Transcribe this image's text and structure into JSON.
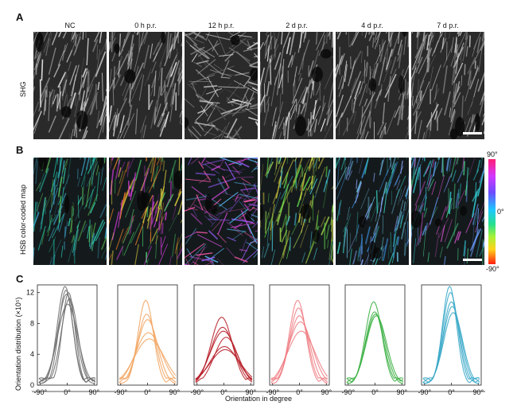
{
  "panels": {
    "a": "A",
    "b": "B",
    "c": "C"
  },
  "columns": [
    "NC",
    "0 h p.r.",
    "12 h p.r.",
    "2 d p.r.",
    "4 d p.r.",
    "7 d p.r."
  ],
  "rows": {
    "shg": "SHG",
    "hsb": "HSB color-coded map"
  },
  "colorbar": {
    "top": "90°",
    "mid": "0°",
    "bottom": "-90°"
  },
  "chart_data": {
    "type": "line",
    "xlabel": "Orientation in degree",
    "ylabel": "Orientation distribution (×10⁵)",
    "xlim": [
      -100,
      100
    ],
    "ylim": [
      0,
      13
    ],
    "xticks": [
      "-90°",
      "0°",
      "90°"
    ],
    "yticks": [
      "0",
      "4",
      "8",
      "12"
    ],
    "panels": [
      {
        "label": "NC",
        "color": "#707070",
        "curves": [
          [
            12.8,
            26
          ],
          [
            12.3,
            24
          ],
          [
            11.8,
            30
          ],
          [
            10.5,
            34
          ],
          [
            12.0,
            22
          ],
          [
            11.2,
            28
          ]
        ]
      },
      {
        "label": "0 h p.r.",
        "color": "#f2a562",
        "curves": [
          [
            11.0,
            26
          ],
          [
            9.2,
            30
          ],
          [
            8.5,
            34
          ],
          [
            6.8,
            44
          ],
          [
            6.0,
            50
          ]
        ]
      },
      {
        "label": "12 h p.r.",
        "color": "#b8202a",
        "curves": [
          [
            8.8,
            36
          ],
          [
            7.5,
            40
          ],
          [
            7.0,
            44
          ],
          [
            5.0,
            48
          ],
          [
            4.6,
            52
          ],
          [
            6.2,
            40
          ]
        ]
      },
      {
        "label": "2 d p.r.",
        "color": "#f08085",
        "curves": [
          [
            11.0,
            28
          ],
          [
            10.0,
            30
          ],
          [
            9.0,
            34
          ],
          [
            8.2,
            40
          ],
          [
            7.0,
            46
          ]
        ]
      },
      {
        "label": "4 d p.r.",
        "color": "#3cb044",
        "curves": [
          [
            10.8,
            28
          ],
          [
            9.5,
            30
          ],
          [
            9.2,
            32
          ],
          [
            9.0,
            34
          ]
        ]
      },
      {
        "label": "7 d p.r.",
        "color": "#3aa8c8",
        "curves": [
          [
            12.8,
            24
          ],
          [
            12.0,
            26
          ],
          [
            10.8,
            28
          ],
          [
            10.2,
            30
          ],
          [
            9.4,
            32
          ]
        ]
      }
    ]
  }
}
